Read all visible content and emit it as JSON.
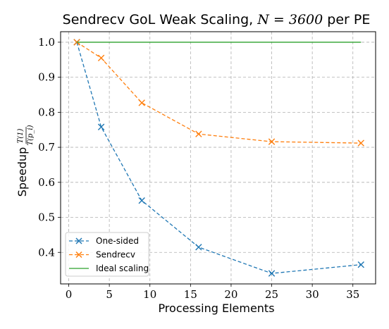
{
  "chart_data": {
    "type": "line",
    "title": "Sendrecv GoL Weak Scaling, N = 3600 per PE",
    "title_prefix": "Sendrecv GoL Weak Scaling, ",
    "title_math": "N = 3600",
    "title_suffix": " per PE",
    "xlabel": "Processing Elements",
    "ylabel": "Speedup",
    "ylabel_fraction_numerator": "T(1)",
    "ylabel_fraction_denominator": "T(p_i)",
    "xlim": [
      -1,
      37.8
    ],
    "ylim": [
      0.31,
      1.03
    ],
    "xticks": [
      0,
      5,
      10,
      15,
      20,
      25,
      30,
      35
    ],
    "yticks": [
      0.4,
      0.5,
      0.6,
      0.7,
      0.8,
      0.9,
      1.0
    ],
    "ytick_labels": [
      "0.4",
      "0.5",
      "0.6",
      "0.7",
      "0.8",
      "0.9",
      "1.0"
    ],
    "grid": true,
    "legend_position": "lower-left",
    "series": [
      {
        "name": "One-sided",
        "color": "#1f77b4",
        "linestyle": "dashed",
        "marker": "x",
        "x": [
          1,
          4,
          9,
          16,
          25,
          36
        ],
        "y": [
          1.0,
          0.758,
          0.548,
          0.415,
          0.34,
          0.365
        ]
      },
      {
        "name": "Sendrecv",
        "color": "#ff7f0e",
        "linestyle": "dashed",
        "marker": "x",
        "x": [
          1,
          4,
          9,
          16,
          25,
          36
        ],
        "y": [
          1.0,
          0.955,
          0.827,
          0.738,
          0.716,
          0.712
        ]
      },
      {
        "name": "Ideal scaling",
        "color": "#2ca02c",
        "linestyle": "solid",
        "marker": "none",
        "x": [
          1,
          36
        ],
        "y": [
          1.0,
          1.0
        ]
      }
    ]
  }
}
